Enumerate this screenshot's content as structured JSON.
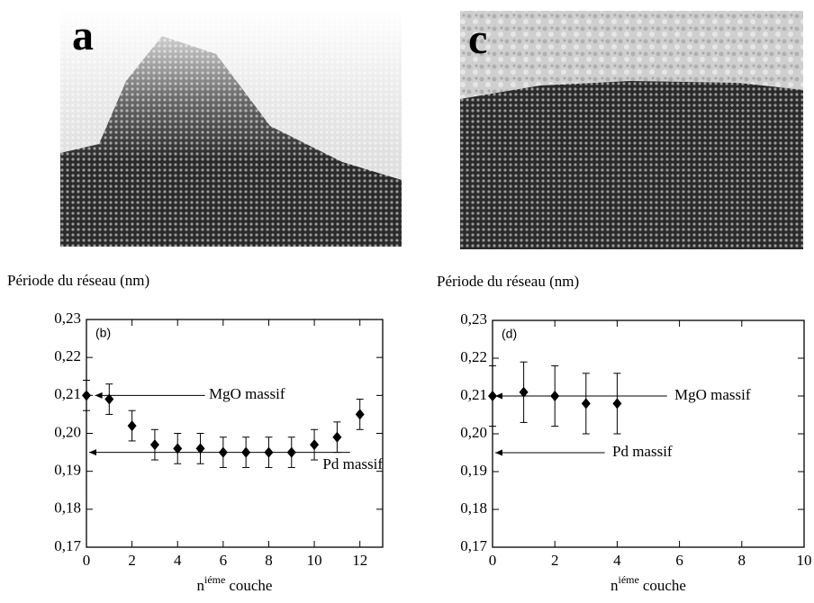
{
  "images": [
    {
      "label": "a"
    },
    {
      "label": "c"
    }
  ],
  "chart_data": [
    {
      "type": "scatter",
      "y_label": "Période du réseau (nm)",
      "x_label": {
        "base": "n",
        "sup": "iéme",
        "rest": "couche"
      },
      "panel_label": "(b)",
      "color": "#000000",
      "x": [
        0,
        1,
        2,
        3,
        4,
        5,
        6,
        7,
        8,
        9,
        10,
        11,
        12
      ],
      "values": [
        0.21,
        0.209,
        0.202,
        0.197,
        0.196,
        0.196,
        0.195,
        0.195,
        0.195,
        0.195,
        0.197,
        0.199,
        0.205
      ],
      "errors": [
        0.004,
        0.004,
        0.004,
        0.004,
        0.004,
        0.004,
        0.004,
        0.004,
        0.004,
        0.004,
        0.004,
        0.004,
        0.004
      ],
      "xlim": [
        0,
        13
      ],
      "ylim": [
        0.17,
        0.23
      ],
      "xticks": [
        0,
        2,
        4,
        6,
        8,
        10,
        12
      ],
      "yticks": [
        {
          "value": 0.17,
          "label": "0,17"
        },
        {
          "value": 0.18,
          "label": "0,18"
        },
        {
          "value": 0.19,
          "label": "0,19"
        },
        {
          "value": 0.2,
          "label": "0,20"
        },
        {
          "value": 0.21,
          "label": "0,21"
        },
        {
          "value": 0.22,
          "label": "0,22"
        },
        {
          "value": 0.23,
          "label": "0,23"
        }
      ],
      "reference_lines": [
        {
          "label": "MgO massif",
          "value": 0.21
        },
        {
          "label": "Pd massif",
          "value": 0.195
        }
      ]
    },
    {
      "type": "scatter",
      "y_label": "Période du réseau (nm)",
      "x_label": {
        "base": "n",
        "sup": "iéme",
        "rest": "couche"
      },
      "panel_label": "(d)",
      "color": "#000000",
      "x": [
        0,
        1,
        2,
        3,
        4
      ],
      "values": [
        0.21,
        0.211,
        0.21,
        0.208,
        0.208
      ],
      "errors": [
        0.008,
        0.008,
        0.008,
        0.008,
        0.008
      ],
      "xlim": [
        0,
        10
      ],
      "ylim": [
        0.17,
        0.23
      ],
      "xticks": [
        0,
        2,
        4,
        6,
        8,
        10
      ],
      "yticks": [
        {
          "value": 0.17,
          "label": "0,17"
        },
        {
          "value": 0.18,
          "label": "0,18"
        },
        {
          "value": 0.19,
          "label": "0,19"
        },
        {
          "value": 0.2,
          "label": "0,20"
        },
        {
          "value": 0.21,
          "label": "0,21"
        },
        {
          "value": 0.22,
          "label": "0,22"
        },
        {
          "value": 0.23,
          "label": "0,23"
        }
      ],
      "reference_lines": [
        {
          "label": "MgO massif",
          "value": 0.21
        },
        {
          "label": "Pd massif",
          "value": 0.195
        }
      ]
    }
  ]
}
